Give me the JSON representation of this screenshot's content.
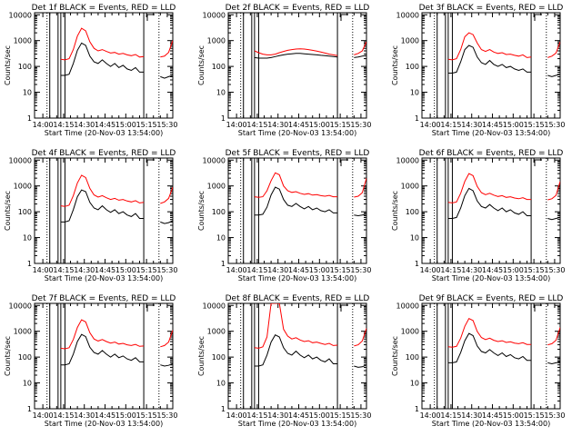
{
  "colors": {
    "events": "#000000",
    "lld": "#ff0000",
    "axis": "#000000",
    "background": "#ffffff"
  },
  "common": {
    "ylabel": "Counts/sec",
    "xlabel": "Start Time (20-Nov-03 13:54:00)",
    "x_ticks": [
      "14:00",
      "14:15",
      "14:30",
      "14:45",
      "15:00",
      "15:15",
      "15:30"
    ],
    "y_ticks": [
      "1",
      "10",
      "100",
      "1000",
      "10000"
    ]
  },
  "chart_data": [
    {
      "type": "line",
      "title": "Det 1f BLACK = Events, RED = LLD",
      "x_unit": "minutes after 13:54:00",
      "ylim": [
        1,
        12000
      ],
      "y_scale": "log",
      "x": [
        10,
        13,
        16,
        19,
        22,
        25,
        28,
        31,
        34,
        37,
        40,
        43,
        46,
        49,
        52,
        55,
        58,
        61,
        64,
        67,
        70,
        73,
        76,
        79,
        82,
        85,
        88,
        91,
        94,
        97,
        100
      ],
      "gaps": [
        [
          0,
          9
        ],
        [
          11,
          17
        ],
        [
          19,
          22
        ],
        [
          79,
          90
        ]
      ],
      "series": [
        {
          "name": "Events",
          "values": [
            60,
            60,
            50,
            45,
            45,
            50,
            130,
            420,
            800,
            650,
            250,
            150,
            130,
            180,
            130,
            100,
            130,
            90,
            110,
            80,
            70,
            90,
            60,
            60,
            50,
            50,
            40,
            40,
            35,
            40,
            45
          ]
        },
        {
          "name": "LLD",
          "values": [
            300,
            260,
            220,
            190,
            180,
            200,
            450,
            1500,
            3000,
            2400,
            900,
            500,
            400,
            450,
            380,
            330,
            350,
            300,
            320,
            280,
            260,
            290,
            230,
            240,
            220,
            220,
            210,
            230,
            250,
            350,
            1000
          ]
        }
      ]
    },
    {
      "type": "line",
      "title": "Det 2f BLACK = Events, RED = LLD",
      "x_unit": "minutes after 13:54:00",
      "ylim": [
        1,
        12000
      ],
      "y_scale": "log",
      "x": [
        10,
        13,
        16,
        19,
        22,
        25,
        28,
        31,
        34,
        37,
        40,
        43,
        46,
        49,
        52,
        55,
        58,
        61,
        64,
        67,
        70,
        73,
        76,
        79,
        82,
        85,
        88,
        91,
        94,
        97,
        100
      ],
      "gaps": [
        [
          0,
          9
        ],
        [
          11,
          17
        ],
        [
          19,
          22
        ],
        [
          79,
          90
        ]
      ],
      "series": [
        {
          "name": "Events",
          "values": [
            280,
            260,
            240,
            220,
            210,
            210,
            210,
            220,
            240,
            260,
            280,
            300,
            310,
            320,
            320,
            310,
            300,
            290,
            280,
            270,
            260,
            250,
            240,
            230,
            220,
            220,
            210,
            220,
            230,
            250,
            260
          ]
        },
        {
          "name": "LLD",
          "values": [
            700,
            600,
            480,
            400,
            340,
            300,
            280,
            280,
            300,
            340,
            380,
            420,
            450,
            470,
            480,
            470,
            450,
            420,
            390,
            360,
            330,
            300,
            280,
            260,
            250,
            250,
            260,
            280,
            320,
            400,
            900
          ]
        }
      ]
    },
    {
      "type": "line",
      "title": "Det 3f BLACK = Events, RED = LLD",
      "x_unit": "minutes after 13:54:00",
      "ylim": [
        1,
        12000
      ],
      "y_scale": "log",
      "x": [
        10,
        13,
        16,
        19,
        22,
        25,
        28,
        31,
        34,
        37,
        40,
        43,
        46,
        49,
        52,
        55,
        58,
        61,
        64,
        67,
        70,
        73,
        76,
        79,
        82,
        85,
        88,
        91,
        94,
        97,
        100
      ],
      "gaps": [
        [
          0,
          9
        ],
        [
          11,
          17
        ],
        [
          19,
          22
        ],
        [
          79,
          90
        ]
      ],
      "series": [
        {
          "name": "Events",
          "values": [
            80,
            70,
            60,
            55,
            55,
            60,
            150,
            450,
            650,
            550,
            230,
            140,
            120,
            170,
            120,
            100,
            120,
            90,
            100,
            80,
            70,
            80,
            60,
            60,
            55,
            50,
            45,
            45,
            40,
            45,
            50
          ]
        },
        {
          "name": "LLD",
          "values": [
            300,
            260,
            220,
            190,
            180,
            200,
            450,
            1400,
            2000,
            1700,
            800,
            450,
            380,
            450,
            360,
            320,
            340,
            290,
            300,
            270,
            250,
            280,
            220,
            230,
            210,
            210,
            200,
            220,
            250,
            330,
            900
          ]
        }
      ]
    },
    {
      "type": "line",
      "title": "Det 4f BLACK = Events, RED = LLD",
      "x_unit": "minutes after 13:54:00",
      "ylim": [
        1,
        12000
      ],
      "y_scale": "log",
      "x": [
        10,
        13,
        16,
        19,
        22,
        25,
        28,
        31,
        34,
        37,
        40,
        43,
        46,
        49,
        52,
        55,
        58,
        61,
        64,
        67,
        70,
        73,
        76,
        79,
        82,
        85,
        88,
        91,
        94,
        97,
        100
      ],
      "gaps": [
        [
          0,
          9
        ],
        [
          11,
          17
        ],
        [
          19,
          22
        ],
        [
          79,
          90
        ]
      ],
      "series": [
        {
          "name": "Events",
          "values": [
            55,
            50,
            45,
            40,
            40,
            45,
            120,
            380,
            700,
            600,
            230,
            140,
            120,
            170,
            120,
            95,
            120,
            85,
            100,
            75,
            65,
            85,
            55,
            55,
            48,
            48,
            40,
            40,
            35,
            38,
            45
          ]
        },
        {
          "name": "LLD",
          "values": [
            250,
            220,
            190,
            170,
            160,
            180,
            420,
            1300,
            2600,
            2100,
            800,
            450,
            370,
            420,
            350,
            300,
            330,
            280,
            300,
            260,
            240,
            270,
            220,
            230,
            200,
            200,
            200,
            210,
            240,
            330,
            900
          ]
        }
      ]
    },
    {
      "type": "line",
      "title": "Det 5f BLACK = Events, RED = LLD",
      "x_unit": "minutes after 13:54:00",
      "ylim": [
        1,
        12000
      ],
      "y_scale": "log",
      "x": [
        10,
        13,
        16,
        19,
        22,
        25,
        28,
        31,
        34,
        37,
        40,
        43,
        46,
        49,
        52,
        55,
        58,
        61,
        64,
        67,
        70,
        73,
        76,
        79,
        82,
        85,
        88,
        91,
        94,
        97,
        100
      ],
      "gaps": [
        [
          0,
          9
        ],
        [
          11,
          17
        ],
        [
          19,
          22
        ],
        [
          79,
          90
        ]
      ],
      "series": [
        {
          "name": "Events",
          "values": [
            90,
            85,
            80,
            75,
            75,
            80,
            150,
            450,
            900,
            750,
            300,
            180,
            160,
            210,
            160,
            130,
            160,
            120,
            140,
            110,
            100,
            120,
            90,
            90,
            80,
            80,
            75,
            75,
            70,
            75,
            80
          ]
        },
        {
          "name": "LLD",
          "values": [
            600,
            500,
            420,
            380,
            360,
            380,
            650,
            1600,
            3200,
            2700,
            1000,
            650,
            560,
            600,
            520,
            470,
            500,
            440,
            460,
            420,
            400,
            430,
            380,
            380,
            360,
            360,
            350,
            370,
            400,
            550,
            2000
          ]
        }
      ]
    },
    {
      "type": "line",
      "title": "Det 6f BLACK = Events, RED = LLD",
      "x_unit": "minutes after 13:54:00",
      "ylim": [
        1,
        12000
      ],
      "y_scale": "log",
      "x": [
        10,
        13,
        16,
        19,
        22,
        25,
        28,
        31,
        34,
        37,
        40,
        43,
        46,
        49,
        52,
        55,
        58,
        61,
        64,
        67,
        70,
        73,
        76,
        79,
        82,
        85,
        88,
        91,
        94,
        97,
        100
      ],
      "gaps": [
        [
          0,
          9
        ],
        [
          11,
          17
        ],
        [
          19,
          22
        ],
        [
          79,
          90
        ]
      ],
      "series": [
        {
          "name": "Events",
          "values": [
            70,
            65,
            60,
            55,
            55,
            60,
            140,
            420,
            800,
            650,
            260,
            160,
            140,
            190,
            140,
            110,
            140,
            100,
            120,
            90,
            80,
            100,
            70,
            70,
            60,
            60,
            55,
            55,
            50,
            55,
            60
          ]
        },
        {
          "name": "LLD",
          "values": [
            350,
            300,
            260,
            230,
            220,
            240,
            520,
            1500,
            3000,
            2500,
            950,
            550,
            460,
            520,
            440,
            390,
            420,
            360,
            380,
            340,
            320,
            350,
            300,
            300,
            280,
            280,
            270,
            290,
            320,
            430,
            1500
          ]
        }
      ]
    },
    {
      "type": "line",
      "title": "Det 7f BLACK = Events, RED = LLD",
      "x_unit": "minutes after 13:54:00",
      "ylim": [
        1,
        12000
      ],
      "y_scale": "log",
      "x": [
        10,
        13,
        16,
        19,
        22,
        25,
        28,
        31,
        34,
        37,
        40,
        43,
        46,
        49,
        52,
        55,
        58,
        61,
        64,
        67,
        70,
        73,
        76,
        79,
        82,
        85,
        88,
        91,
        94,
        97,
        100
      ],
      "gaps": [
        [
          0,
          9
        ],
        [
          11,
          17
        ],
        [
          19,
          22
        ],
        [
          79,
          90
        ]
      ],
      "series": [
        {
          "name": "Events",
          "values": [
            65,
            60,
            55,
            50,
            50,
            55,
            130,
            400,
            750,
            620,
            240,
            150,
            130,
            180,
            130,
            100,
            130,
            95,
            110,
            85,
            75,
            95,
            65,
            65,
            55,
            55,
            50,
            50,
            45,
            48,
            55
          ]
        },
        {
          "name": "LLD",
          "values": [
            330,
            290,
            250,
            220,
            210,
            230,
            480,
            1400,
            2800,
            2300,
            880,
            500,
            420,
            480,
            400,
            350,
            380,
            320,
            340,
            300,
            280,
            310,
            260,
            270,
            240,
            240,
            230,
            250,
            280,
            380,
            1100
          ]
        }
      ]
    },
    {
      "type": "line",
      "title": "Det 8f BLACK = Events, RED = LLD",
      "x_unit": "minutes after 13:54:00",
      "ylim": [
        1,
        12000
      ],
      "y_scale": "log",
      "x": [
        10,
        13,
        16,
        19,
        22,
        25,
        28,
        31,
        34,
        37,
        40,
        43,
        46,
        49,
        52,
        55,
        58,
        61,
        64,
        67,
        70,
        73,
        76,
        79,
        82,
        85,
        88,
        91,
        94,
        97,
        100
      ],
      "gaps": [
        [
          0,
          9
        ],
        [
          11,
          17
        ],
        [
          19,
          22
        ],
        [
          79,
          90
        ]
      ],
      "series": [
        {
          "name": "Events",
          "values": [
            60,
            55,
            50,
            45,
            45,
            50,
            120,
            380,
            720,
            600,
            230,
            140,
            120,
            170,
            120,
            95,
            120,
            85,
            100,
            75,
            65,
            85,
            55,
            55,
            50,
            50,
            45,
            45,
            40,
            42,
            50
          ]
        },
        {
          "name": "LLD",
          "values": [
            350,
            300,
            260,
            230,
            220,
            250,
            600,
            12000,
            12000,
            12000,
            1200,
            650,
            500,
            560,
            460,
            400,
            430,
            360,
            380,
            340,
            310,
            340,
            280,
            290,
            260,
            260,
            250,
            270,
            300,
            420,
            1300
          ]
        }
      ]
    },
    {
      "type": "line",
      "title": "Det 9f BLACK = Events, RED = LLD",
      "x_unit": "minutes after 13:54:00",
      "ylim": [
        1,
        12000
      ],
      "y_scale": "log",
      "x": [
        10,
        13,
        16,
        19,
        22,
        25,
        28,
        31,
        34,
        37,
        40,
        43,
        46,
        49,
        52,
        55,
        58,
        61,
        64,
        67,
        70,
        73,
        76,
        79,
        82,
        85,
        88,
        91,
        94,
        97,
        100
      ],
      "gaps": [
        [
          0,
          9
        ],
        [
          11,
          17
        ],
        [
          19,
          22
        ],
        [
          79,
          90
        ]
      ],
      "series": [
        {
          "name": "Events",
          "values": [
            75,
            70,
            65,
            60,
            60,
            65,
            150,
            430,
            820,
            680,
            270,
            165,
            145,
            195,
            145,
            115,
            145,
            105,
            125,
            95,
            85,
            105,
            75,
            75,
            65,
            65,
            60,
            60,
            55,
            60,
            65
          ]
        },
        {
          "name": "LLD",
          "values": [
            380,
            330,
            280,
            250,
            240,
            260,
            540,
            1550,
            3100,
            2600,
            980,
            570,
            480,
            540,
            450,
            400,
            430,
            370,
            390,
            350,
            330,
            360,
            310,
            310,
            290,
            290,
            280,
            300,
            330,
            450,
            1400
          ]
        }
      ]
    }
  ]
}
